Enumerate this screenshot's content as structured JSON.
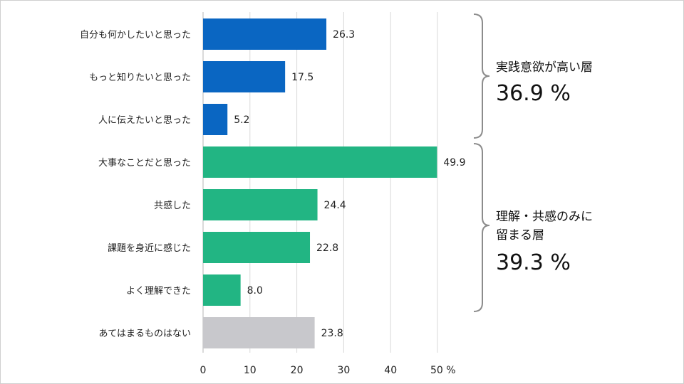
{
  "chart_data": {
    "type": "bar",
    "orientation": "horizontal",
    "categories": [
      "自分も何かしたいと思った",
      "もっと知りたいと思った",
      "人に伝えたいと思った",
      "大事なことだと思った",
      "共感した",
      "課題を身近に感じた",
      "よく理解できた",
      "あてはまるものはない"
    ],
    "values": [
      26.3,
      17.5,
      5.2,
      49.9,
      24.4,
      22.8,
      8.0,
      23.8
    ],
    "value_labels": [
      "26.3",
      "17.5",
      "5.2",
      "49.9",
      "24.4",
      "22.8",
      "8.0",
      "23.8"
    ],
    "bar_colors": [
      "#0a66c2",
      "#0a66c2",
      "#0a66c2",
      "#22b583",
      "#22b583",
      "#22b583",
      "#22b583",
      "#c8c8cc"
    ],
    "x_ticks": [
      "0",
      "10",
      "20",
      "30",
      "40",
      "50 %"
    ],
    "xlim": [
      0,
      50
    ],
    "grid": true
  },
  "groups": [
    {
      "label_lines": [
        "実践意欲が高い層"
      ],
      "percent": "36.9 %"
    },
    {
      "label_lines": [
        "理解・共感のみに",
        "留まる層"
      ],
      "percent": "39.3 %"
    }
  ],
  "colors": {
    "blue": "#0a66c2",
    "green": "#22b583",
    "gray": "#c8c8cc",
    "grid": "#d9d9d9",
    "brace": "#8c8c8c"
  }
}
